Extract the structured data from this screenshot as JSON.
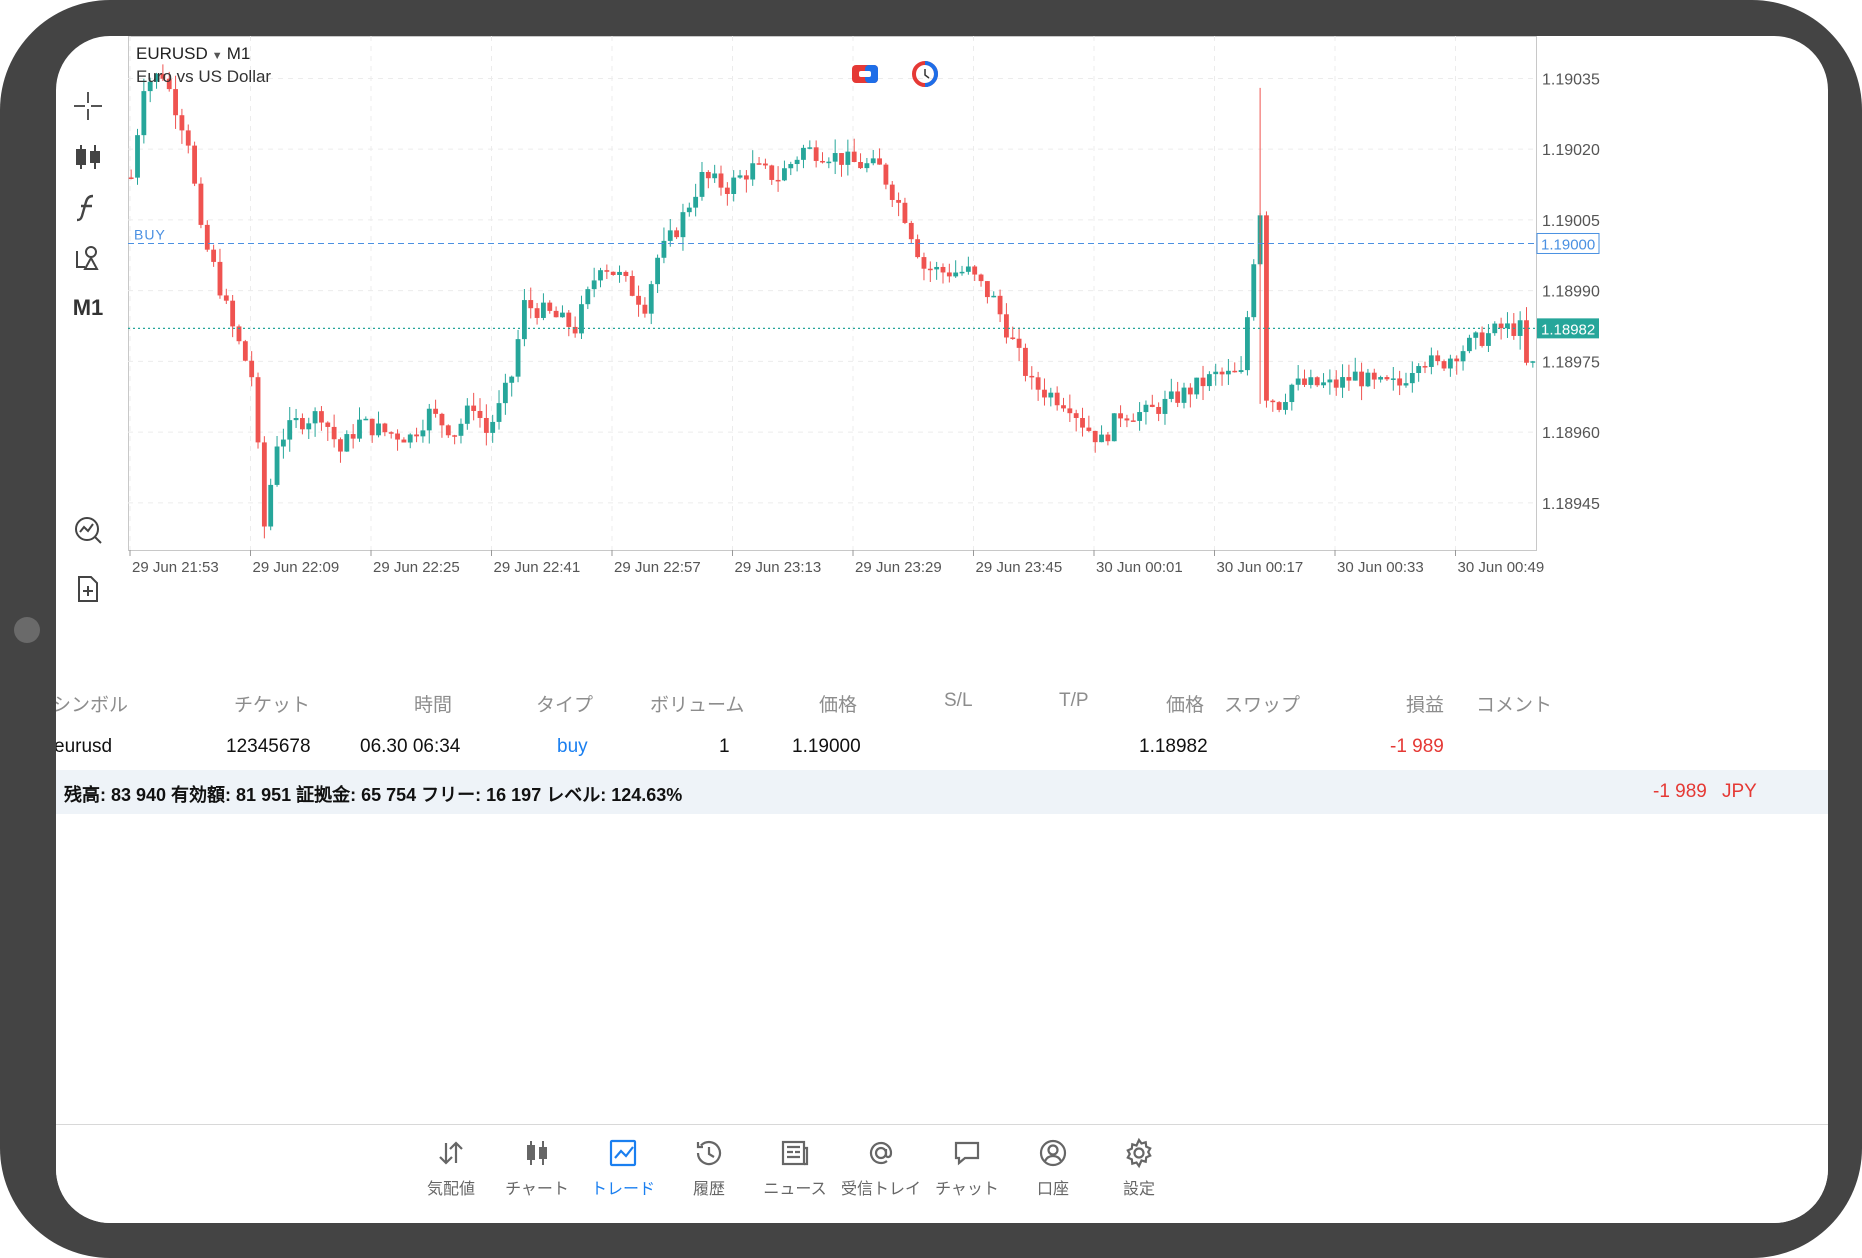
{
  "chart": {
    "symbol": "EURUSD",
    "timeframe": "M1",
    "description": "Euro vs US Dollar",
    "toolbar": [
      {
        "name": "crosshair-icon"
      },
      {
        "name": "candlestick-icon"
      },
      {
        "name": "indicator-f-icon"
      },
      {
        "name": "objects-icon"
      },
      {
        "name": "timeframe",
        "label": "M1"
      },
      {
        "name": "trade-chart-icon"
      },
      {
        "name": "new-order-icon"
      }
    ],
    "top_icons": [
      "one-click-trading-icon",
      "clock-icon"
    ],
    "buy_label": "BUY",
    "price_labels": [
      "1.19035",
      "1.19020",
      "1.19005",
      "1.18990",
      "1.18975",
      "1.18960",
      "1.18945"
    ],
    "time_labels": [
      "29 Jun 21:53",
      "29 Jun 22:09",
      "29 Jun 22:25",
      "29 Jun 22:41",
      "29 Jun 22:57",
      "29 Jun 23:13",
      "29 Jun 23:29",
      "29 Jun 23:45",
      "30 Jun 00:01",
      "30 Jun 00:17",
      "30 Jun 00:33",
      "30 Jun 00:49"
    ],
    "order_price_tag": "1.19000",
    "current_price_tag": "1.18982",
    "colors": {
      "bull": "#26a69a",
      "bear": "#ef5350",
      "buy_line": "#4a90e2",
      "price_line": "#26a69a",
      "grid": "#ececec"
    }
  },
  "chart_data": {
    "type": "candlestick",
    "title": "",
    "symbol": "EURUSD",
    "timeframe": "M1",
    "x_range": [
      "29 Jun 21:49",
      "30 Jun 00:51"
    ],
    "y_range": [
      1.18935,
      1.19044
    ],
    "buy_level": 1.19,
    "bid_level": 1.18982,
    "grid": true,
    "anchors": [
      [
        0,
        1.19014
      ],
      [
        2,
        1.19034
      ],
      [
        5,
        1.19036
      ],
      [
        9,
        1.19022
      ],
      [
        11,
        1.19002
      ],
      [
        13,
        1.18995
      ],
      [
        16,
        1.18982
      ],
      [
        19,
        1.18972
      ],
      [
        21,
        1.1894
      ],
      [
        23,
        1.18958
      ],
      [
        26,
        1.18962
      ],
      [
        30,
        1.18964
      ],
      [
        33,
        1.18956
      ],
      [
        36,
        1.18962
      ],
      [
        40,
        1.1896
      ],
      [
        44,
        1.18959
      ],
      [
        47,
        1.18964
      ],
      [
        51,
        1.1896
      ],
      [
        54,
        1.18966
      ],
      [
        56,
        1.1896
      ],
      [
        58,
        1.18965
      ],
      [
        60,
        1.18972
      ],
      [
        62,
        1.18987
      ],
      [
        66,
        1.18985
      ],
      [
        70,
        1.18982
      ],
      [
        74,
        1.18996
      ],
      [
        77,
        1.18993
      ],
      [
        81,
        1.18987
      ],
      [
        83,
        1.18997
      ],
      [
        86,
        1.19003
      ],
      [
        90,
        1.19014
      ],
      [
        94,
        1.19012
      ],
      [
        98,
        1.19016
      ],
      [
        102,
        1.19014
      ],
      [
        106,
        1.1902
      ],
      [
        110,
        1.19019
      ],
      [
        114,
        1.19017
      ],
      [
        118,
        1.19016
      ],
      [
        122,
        1.19006
      ],
      [
        125,
        1.18995
      ],
      [
        128,
        1.18994
      ],
      [
        132,
        1.18994
      ],
      [
        136,
        1.18988
      ],
      [
        140,
        1.18976
      ],
      [
        142,
        1.1897
      ],
      [
        145,
        1.18968
      ],
      [
        148,
        1.18966
      ],
      [
        150,
        1.18962
      ],
      [
        153,
        1.18958
      ],
      [
        156,
        1.18964
      ],
      [
        160,
        1.18964
      ],
      [
        163,
        1.18966
      ],
      [
        167,
        1.18969
      ],
      [
        171,
        1.18972
      ],
      [
        175,
        1.18972
      ],
      [
        177,
        1.18997
      ],
      [
        178,
        1.19007
      ],
      [
        179,
        1.18968
      ],
      [
        181,
        1.18966
      ],
      [
        183,
        1.1897
      ],
      [
        190,
        1.1897
      ],
      [
        193,
        1.18972
      ],
      [
        196,
        1.1897
      ],
      [
        200,
        1.1897
      ],
      [
        203,
        1.18976
      ],
      [
        206,
        1.18974
      ],
      [
        209,
        1.18977
      ],
      [
        213,
        1.1898
      ],
      [
        216,
        1.18982
      ],
      [
        219,
        1.18982
      ],
      [
        220,
        1.18974
      ]
    ]
  },
  "table": {
    "headers": [
      "シンボル",
      "チケット",
      "時間",
      "タイプ",
      "ボリューム",
      "価格",
      "S/L",
      "T/P",
      "価格",
      "スワップ",
      "損益",
      "コメント"
    ],
    "row": {
      "symbol": "eurusd",
      "ticket": "12345678",
      "time": "06.30 06:34",
      "type": "buy",
      "volume": "1",
      "open_price": "1.19000",
      "current_price": "1.18982",
      "profit": "-1 989"
    },
    "summary": "残高: 83 940 有効額: 81 951 証拠金: 65 754 フリー: 16 197 レベル: 124.63%",
    "summary_profit": "-1 989",
    "currency": "JPY"
  },
  "nav": {
    "items": [
      {
        "label": "気配値",
        "icon": "quotes-arrows-icon"
      },
      {
        "label": "チャート",
        "icon": "chart-candles-icon"
      },
      {
        "label": "トレード",
        "icon": "trade-chart-icon",
        "active": true
      },
      {
        "label": "履歴",
        "icon": "history-clock-icon"
      },
      {
        "label": "ニュース",
        "icon": "news-icon"
      },
      {
        "label": "受信トレイ",
        "icon": "at-mail-icon"
      },
      {
        "label": "チャット",
        "icon": "chat-bubble-icon"
      },
      {
        "label": "口座",
        "icon": "account-user-icon"
      },
      {
        "label": "設定",
        "icon": "settings-gear-icon"
      }
    ]
  }
}
